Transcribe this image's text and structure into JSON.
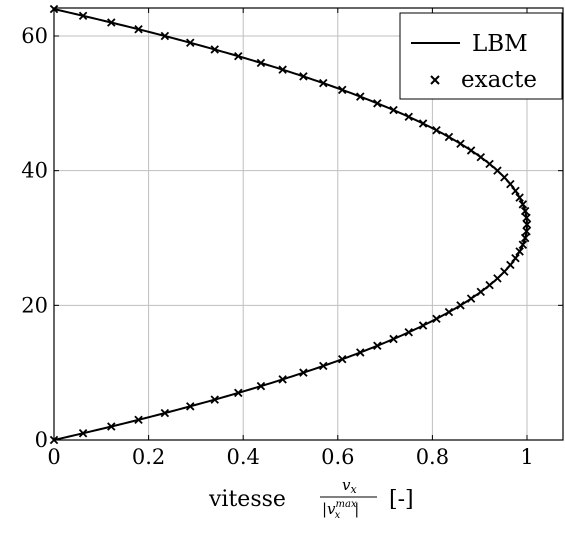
{
  "chart_data": {
    "type": "line",
    "title": "",
    "xlabel_prefix": "vitesse",
    "xlabel_frac_num": "v",
    "xlabel_frac_num_sub": "x",
    "xlabel_frac_den": "|v",
    "xlabel_frac_den_sup": "max",
    "xlabel_frac_den_sub": "x",
    "xlabel_frac_den_end": "|",
    "xlabel_unit": "[-]",
    "ylabel": "",
    "xlim": [
      0,
      1.08
    ],
    "ylim": [
      0,
      64
    ],
    "xticks": [
      0,
      0.2,
      0.4,
      0.6,
      0.8,
      1
    ],
    "xtick_labels": [
      "0",
      "0.2",
      "0.4",
      "0.6",
      "0.8",
      "1"
    ],
    "yticks": [
      0,
      20,
      40,
      60
    ],
    "ytick_labels": [
      "0",
      "20",
      "40",
      "60"
    ],
    "grid": true,
    "legend_position": "top-right",
    "series": [
      {
        "name": "LBM",
        "style": "solid-line",
        "color": "#000000"
      },
      {
        "name": "exacte",
        "style": "cross-markers",
        "color": "#000000"
      }
    ],
    "profile": {
      "height": 64,
      "center": 32,
      "max_velocity": 1
    },
    "y": [
      0,
      1,
      2,
      3,
      4,
      5,
      6,
      7,
      8,
      9,
      10,
      11,
      12,
      13,
      14,
      15,
      16,
      17,
      18,
      19,
      20,
      21,
      22,
      23,
      24,
      25,
      26,
      27,
      28,
      29,
      30,
      31,
      32,
      33,
      34,
      35,
      36,
      37,
      38,
      39,
      40,
      41,
      42,
      43,
      44,
      45,
      46,
      47,
      48,
      49,
      50,
      51,
      52,
      53,
      54,
      55,
      56,
      57,
      58,
      59,
      60,
      61,
      62,
      63,
      64
    ],
    "x": [
      0,
      0.0615,
      0.1211,
      0.1787,
      0.2344,
      0.2881,
      0.3398,
      0.3896,
      0.4375,
      0.4834,
      0.5273,
      0.5693,
      0.6094,
      0.6475,
      0.6836,
      0.7178,
      0.75,
      0.7803,
      0.8086,
      0.835,
      0.8594,
      0.8818,
      0.9023,
      0.9209,
      0.9375,
      0.9521,
      0.9648,
      0.9756,
      0.9844,
      0.9912,
      0.9961,
      0.999,
      1,
      0.999,
      0.9961,
      0.9912,
      0.9844,
      0.9756,
      0.9648,
      0.9521,
      0.9375,
      0.9209,
      0.9023,
      0.8818,
      0.8594,
      0.835,
      0.8086,
      0.7803,
      0.75,
      0.7178,
      0.6836,
      0.6475,
      0.6094,
      0.5693,
      0.5273,
      0.4834,
      0.4375,
      0.3896,
      0.3398,
      0.2881,
      0.2344,
      0.1787,
      0.1211,
      0.0615,
      0
    ]
  }
}
